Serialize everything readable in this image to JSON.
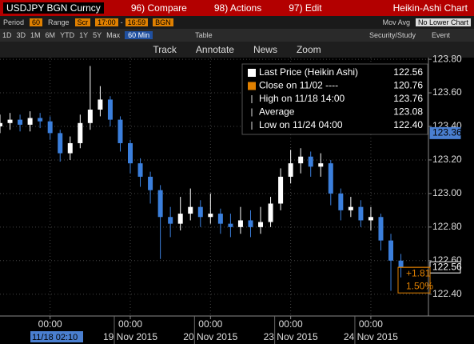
{
  "ui": {
    "security": "USDJPY BGN Curncy",
    "compare": "96) Compare",
    "actions": "98) Actions",
    "edit": "97) Edit",
    "chart_name": "Heikin-Ashi Chart",
    "period_label": "Period",
    "period": "60",
    "range_label": "Range",
    "range_type": "Scr",
    "range_from": "17:00",
    "range_sep": "-",
    "range_to": "16:59",
    "source": "BGN",
    "mov_avg": "Mov Avg",
    "lower_chart": "No Lower Chart",
    "ranges": [
      "1D",
      "3D",
      "1M",
      "6M",
      "YTD",
      "1Y",
      "5Y",
      "Max"
    ],
    "interval": "60 Min",
    "table": "Table",
    "security_study": "Security/Study",
    "event": "Event",
    "track": "Track",
    "annotate": "Annotate",
    "news": "News",
    "zoom": "Zoom"
  },
  "chart_data": {
    "type": "candlestick",
    "up_color": "#ffffff",
    "down_color": "#3b7fdc",
    "grid": true,
    "x": [
      -15,
      -12,
      -9,
      -6,
      -3,
      0,
      3,
      6,
      9,
      12,
      15,
      18,
      21,
      24,
      27,
      30,
      33,
      36,
      39,
      42,
      45,
      48,
      51,
      54,
      57,
      60,
      63,
      66,
      69,
      72,
      75,
      78,
      81,
      84,
      87,
      90,
      93,
      96,
      99,
      102,
      105
    ],
    "open": [
      123.4,
      123.42,
      123.44,
      123.41,
      123.45,
      123.43,
      123.36,
      123.24,
      123.3,
      123.42,
      123.5,
      123.56,
      123.44,
      123.3,
      123.18,
      123.1,
      123.02,
      122.86,
      122.82,
      122.88,
      122.92,
      122.86,
      122.88,
      122.82,
      122.8,
      122.84,
      122.8,
      122.83,
      122.94,
      123.1,
      123.18,
      123.22,
      123.16,
      123.18,
      123.0,
      122.9,
      122.92,
      122.84,
      122.86,
      122.72,
      122.6
    ],
    "high": [
      123.47,
      123.48,
      123.47,
      123.49,
      123.48,
      123.46,
      123.38,
      123.34,
      123.47,
      123.76,
      123.64,
      123.58,
      123.46,
      123.32,
      123.21,
      123.13,
      123.05,
      122.92,
      122.98,
      123.03,
      122.96,
      123.0,
      122.91,
      122.88,
      122.92,
      122.9,
      122.92,
      122.98,
      123.15,
      123.26,
      123.27,
      123.25,
      123.24,
      123.2,
      123.03,
      122.98,
      122.96,
      122.92,
      122.88,
      122.76,
      122.64
    ],
    "low": [
      123.36,
      123.38,
      123.37,
      123.37,
      123.39,
      123.32,
      123.19,
      123.2,
      123.27,
      123.38,
      123.46,
      123.4,
      123.25,
      123.12,
      123.04,
      122.94,
      122.61,
      122.74,
      122.78,
      122.84,
      122.8,
      122.82,
      122.76,
      122.74,
      122.76,
      122.74,
      122.76,
      122.8,
      122.9,
      123.06,
      123.12,
      123.1,
      123.1,
      122.93,
      122.84,
      122.86,
      122.8,
      122.78,
      122.66,
      122.42,
      122.5
    ],
    "close": [
      123.42,
      123.44,
      123.41,
      123.45,
      123.43,
      123.36,
      123.24,
      123.3,
      123.42,
      123.5,
      123.56,
      123.44,
      123.3,
      123.18,
      123.1,
      123.02,
      122.86,
      122.82,
      122.88,
      122.92,
      122.86,
      122.88,
      122.82,
      122.8,
      122.84,
      122.8,
      122.83,
      122.94,
      123.1,
      123.18,
      123.22,
      123.16,
      123.18,
      123.0,
      122.9,
      122.92,
      122.84,
      122.86,
      122.72,
      122.6,
      122.56
    ],
    "xlim": [
      -15,
      113
    ],
    "ylim": [
      122.27,
      123.81
    ],
    "xticks": [
      {
        "value": 0,
        "label": "00:00"
      },
      {
        "value": 24,
        "label": "00:00"
      },
      {
        "value": 48,
        "label": "00:00"
      },
      {
        "value": 72,
        "label": "00:00"
      },
      {
        "value": 96,
        "label": "00:00"
      }
    ],
    "x_dates": [
      {
        "value": 24,
        "label": "19 Nov 2015"
      },
      {
        "value": 48,
        "label": "20 Nov 2015"
      },
      {
        "value": 72,
        "label": "23 Nov 2015"
      },
      {
        "value": 96,
        "label": "24 Nov 2015"
      }
    ],
    "cursor_label": "11/18 02:10",
    "yticks": [
      {
        "value": 122.4,
        "label": "122.40"
      },
      {
        "value": 122.6,
        "label": "122.60"
      },
      {
        "value": 122.8,
        "label": "122.80"
      },
      {
        "value": 123.0,
        "label": "123.00"
      },
      {
        "value": 123.2,
        "label": "123.20"
      },
      {
        "value": 123.4,
        "label": "123.40"
      },
      {
        "value": 123.6,
        "label": "123.60"
      },
      {
        "value": 123.8,
        "label": "123.80"
      }
    ],
    "legend": [
      {
        "name": "Last Price (Heikin Ashi)",
        "value": "122.56"
      },
      {
        "name": "Close on 11/02 ----",
        "value": "120.76"
      },
      {
        "name": "High on 11/18 14:00",
        "value": "123.76"
      },
      {
        "name": "Average",
        "value": "123.08"
      },
      {
        "name": "Low on 11/24 04:00",
        "value": "122.40"
      }
    ],
    "markers": [
      {
        "value": 123.36,
        "label": "123.36"
      },
      {
        "value": 122.56,
        "label": "122.56"
      }
    ],
    "change": "+1.81",
    "change_pct": "1.50%"
  }
}
